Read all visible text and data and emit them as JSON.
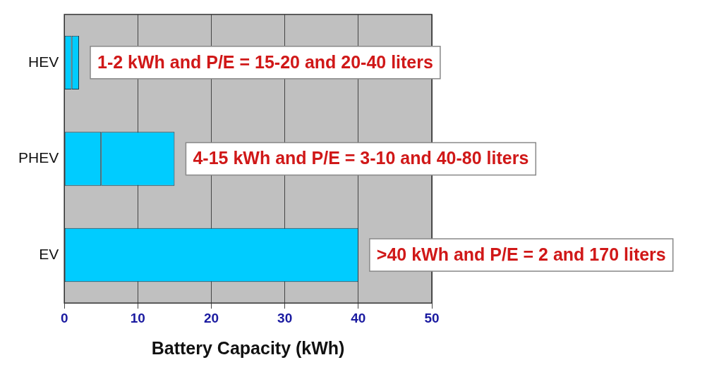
{
  "chart_data": {
    "type": "bar",
    "orientation": "horizontal",
    "stacked": true,
    "categories": [
      "HEV",
      "PHEV",
      "EV"
    ],
    "series": [
      {
        "color": "#00ccff",
        "values": [
          1,
          5,
          40
        ]
      },
      {
        "color": "#00ccff",
        "values": [
          1,
          10,
          null
        ]
      }
    ],
    "xlabel": "Battery Capacity (kWh)",
    "xlim": [
      0,
      50
    ],
    "xticks": [
      0,
      10,
      20,
      30,
      40,
      50
    ],
    "grid": "x",
    "legend": false,
    "annotations": [
      {
        "text": "1-2 kWh and P/E = 15-20 and 20-40 liters",
        "x": 2,
        "y": "HEV"
      },
      {
        "text": "4-15 kWh and P/E = 3-10 and 40-80 liters",
        "x": 15,
        "y": "PHEV"
      },
      {
        "text": ">40 kWh and P/E = 2 and 170 liters",
        "x": 40,
        "y": "EV"
      }
    ]
  }
}
